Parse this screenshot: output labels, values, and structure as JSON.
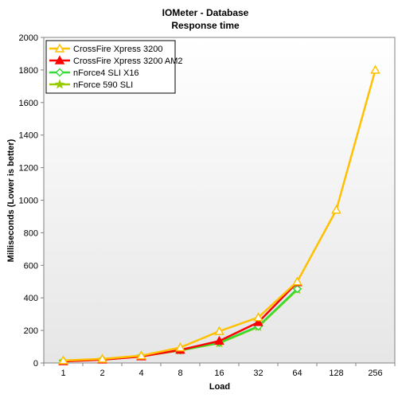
{
  "chart_data": {
    "type": "line",
    "title": "IOMeter - Database",
    "subtitle": "Response time",
    "xlabel": "Load",
    "ylabel": "Milliseconds (Lower is better)",
    "categories": [
      "1",
      "2",
      "4",
      "8",
      "16",
      "32",
      "64",
      "128",
      "256"
    ],
    "ylim": [
      0,
      2000
    ],
    "yticks": [
      0,
      200,
      400,
      600,
      800,
      1000,
      1200,
      1400,
      1600,
      1800,
      2000
    ],
    "grid": false,
    "plot_background": [
      "#ffffff",
      "#e6e6e6"
    ],
    "legend_position": "top-left",
    "series": [
      {
        "name": "CrossFire Xpress 3200",
        "color": "#ffc000",
        "marker": "triangle-open",
        "values": [
          15,
          25,
          45,
          95,
          195,
          280,
          500,
          940,
          1800
        ]
      },
      {
        "name": "CrossFire Xpress 3200 AM2",
        "color": "#ff0000",
        "marker": "triangle-filled",
        "values": [
          10,
          20,
          40,
          80,
          135,
          250,
          495,
          null,
          null
        ]
      },
      {
        "name": "nForce4 SLI X16",
        "color": "#33dd33",
        "marker": "diamond-open",
        "values": [
          12,
          22,
          42,
          78,
          125,
          225,
          455,
          null,
          null
        ]
      },
      {
        "name": "nForce 590 SLI",
        "color": "#99cc00",
        "marker": "star",
        "values": [
          11,
          21,
          41,
          77,
          122,
          222,
          450,
          null,
          null
        ]
      }
    ]
  }
}
